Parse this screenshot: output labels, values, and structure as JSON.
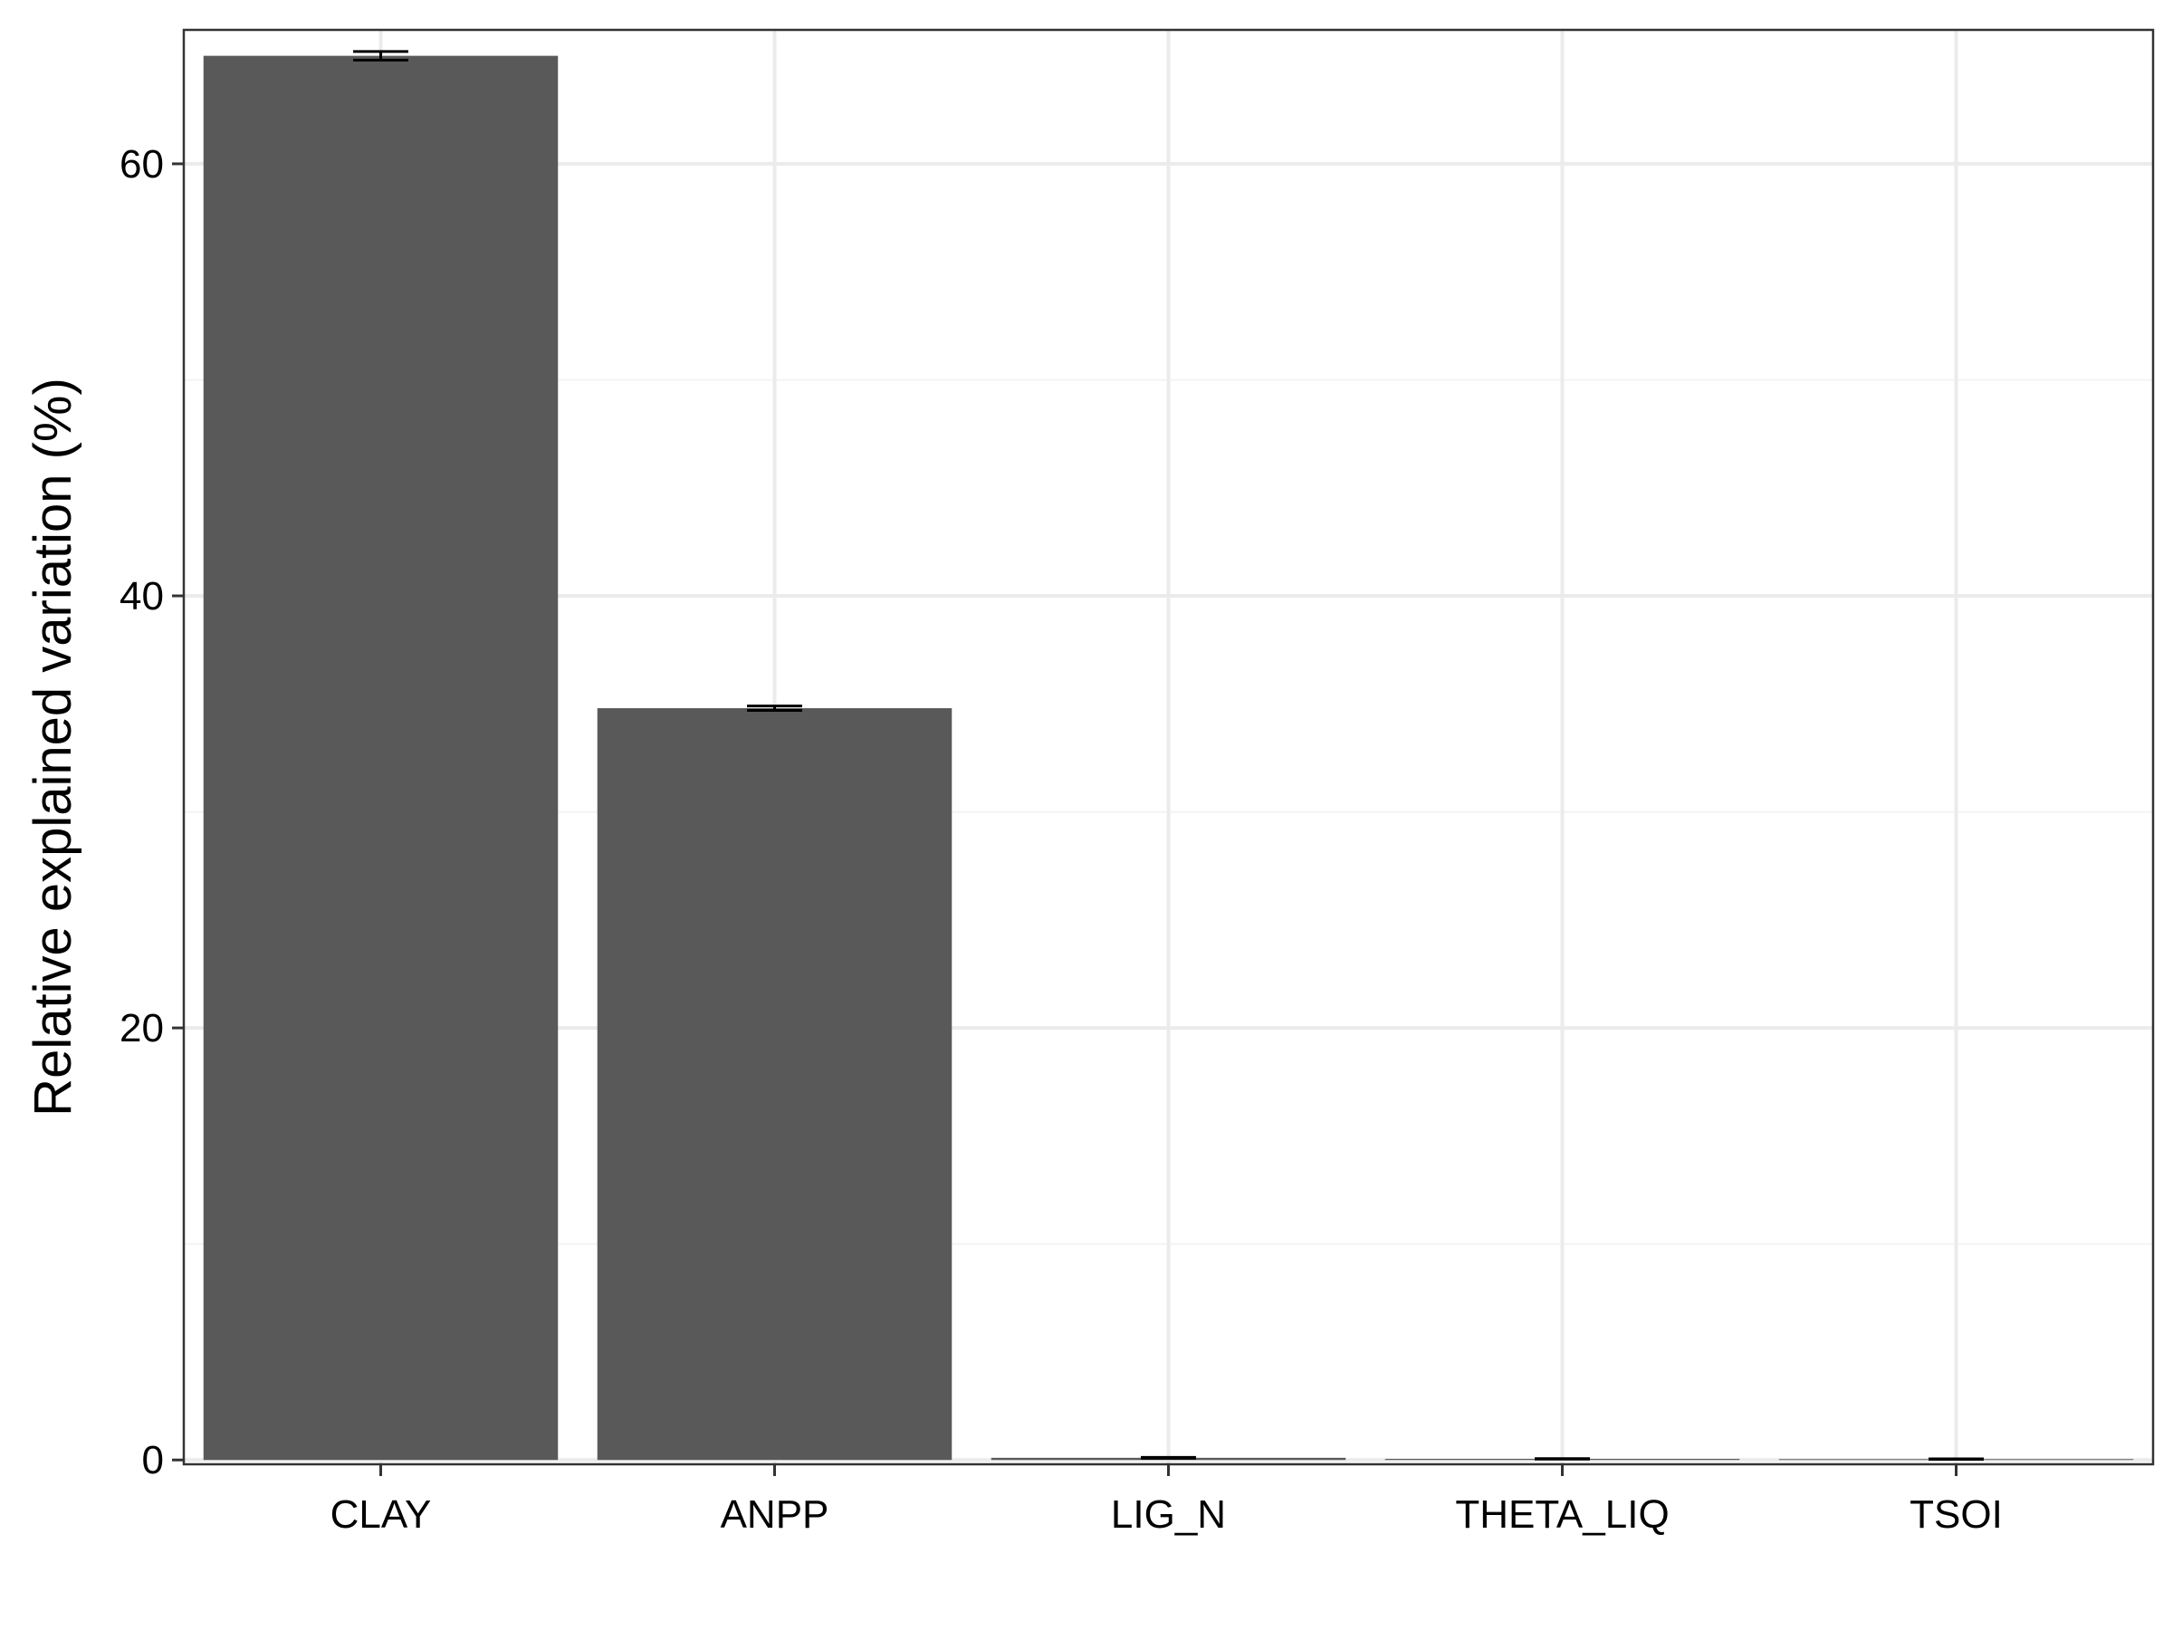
{
  "chart_data": {
    "type": "bar",
    "title": "",
    "xlabel": "",
    "ylabel": "Relative explained variation (%)",
    "categories": [
      "CLAY",
      "ANPP",
      "LIG_N",
      "THETA_LIQ",
      "TSOI"
    ],
    "values": [
      65.0,
      34.8,
      0.1,
      0.05,
      0.04
    ],
    "error": [
      0.2,
      0.1,
      0.02,
      0.01,
      0.01
    ],
    "ylim": [
      -0.2,
      66.2
    ],
    "yticks": [
      0,
      20,
      40,
      60
    ],
    "y_tick_labels": [
      "0",
      "20",
      "40",
      "60"
    ],
    "grid": true,
    "legend": "none",
    "colors": {
      "bar": "#595959",
      "grid_major": "#ebebeb",
      "grid_minor": "#f3f3f3",
      "panel_border": "#333333",
      "text": "#000000"
    }
  }
}
